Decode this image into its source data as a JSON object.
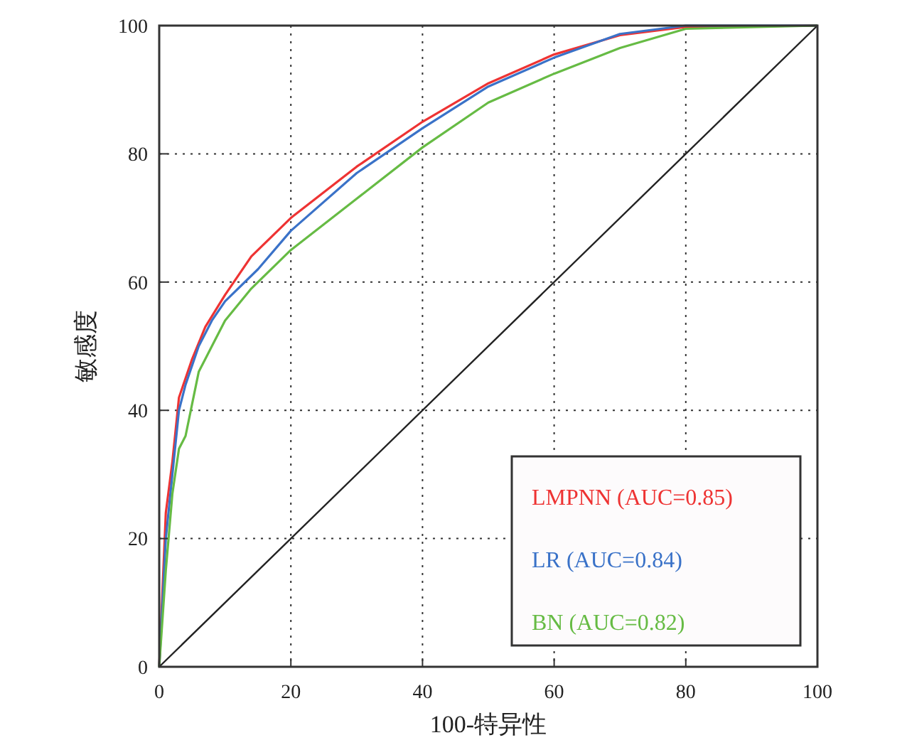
{
  "chart_data": {
    "type": "line",
    "xlabel": "100-特异性",
    "ylabel": "敏感度",
    "xlim": [
      0,
      100
    ],
    "ylim": [
      0,
      100
    ],
    "xticks": [
      0,
      20,
      40,
      60,
      80,
      100
    ],
    "yticks": [
      0,
      20,
      40,
      60,
      80,
      100
    ],
    "grid": true,
    "legend": "bottom right",
    "line_style": "solid",
    "marker": "none",
    "series": [
      {
        "name": "LMPNN (AUC=0.85)",
        "color": "#ee3333",
        "x": [
          0,
          0.5,
          1,
          2,
          3,
          5,
          7,
          10,
          14,
          20,
          30,
          40,
          50,
          60,
          70,
          80,
          100
        ],
        "values": [
          0,
          12,
          24,
          32,
          42,
          48,
          53,
          58,
          64,
          70,
          78,
          85,
          91,
          95.5,
          98.5,
          99.8,
          100
        ]
      },
      {
        "name": "LR (AUC=0.84)",
        "color": "#3a72c8",
        "x": [
          0,
          0.5,
          1,
          2,
          3,
          4,
          6,
          8,
          10,
          15,
          20,
          30,
          40,
          50,
          60,
          70,
          80,
          100
        ],
        "values": [
          0,
          10,
          20,
          30,
          40,
          44,
          50,
          54,
          57,
          62,
          68,
          77,
          84,
          90.5,
          95,
          98.7,
          100,
          100
        ]
      },
      {
        "name": "BN (AUC=0.82)",
        "color": "#66bb44",
        "x": [
          0,
          1,
          2,
          3,
          4,
          5,
          6,
          8,
          10,
          14,
          20,
          30,
          40,
          50,
          60,
          70,
          75,
          80,
          100
        ],
        "values": [
          0,
          15,
          27,
          34,
          36,
          41,
          46,
          50,
          54,
          59,
          65,
          73,
          81,
          88,
          92.5,
          96.5,
          98,
          99.5,
          100
        ]
      },
      {
        "color": "#222222",
        "x": [
          0,
          100
        ],
        "values": [
          0,
          100
        ]
      }
    ]
  }
}
